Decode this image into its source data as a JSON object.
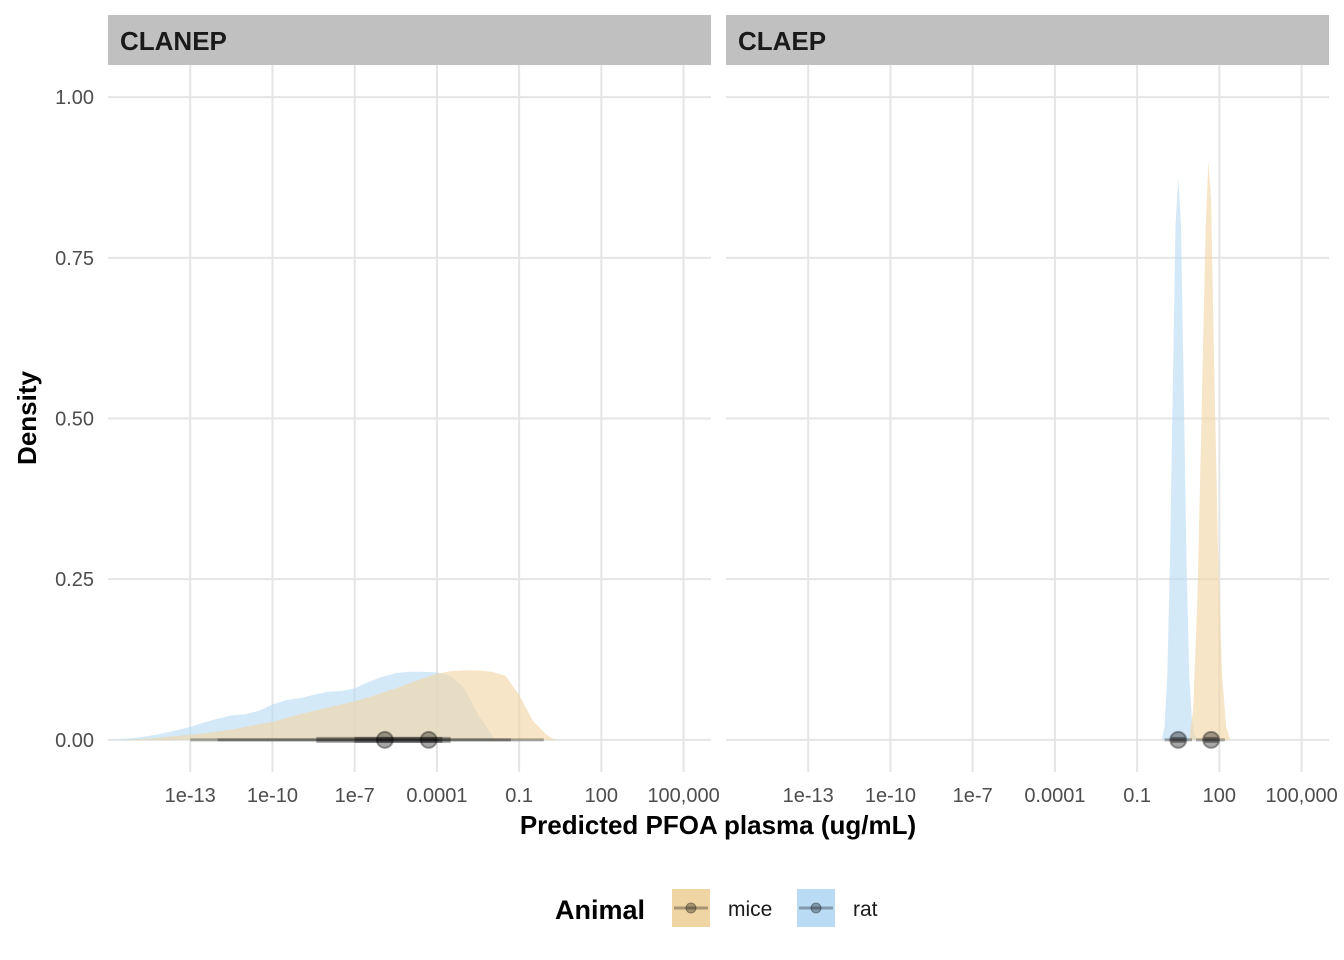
{
  "chart_data": {
    "type": "area",
    "subtype": "density with point-interval summaries, faceted",
    "xlabel": "Predicted PFOA plasma (ug/mL)",
    "ylabel": "Density",
    "x_scale": "log10",
    "x_ticks": [
      {
        "value": 1e-13,
        "label": "1e-13"
      },
      {
        "value": 1e-10,
        "label": "1e-10"
      },
      {
        "value": 1e-07,
        "label": "1e-7"
      },
      {
        "value": 0.0001,
        "label": "0.0001"
      },
      {
        "value": 0.1,
        "label": "0.1"
      },
      {
        "value": 100,
        "label": "100"
      },
      {
        "value": 100000,
        "label": "100,000"
      }
    ],
    "y_ticks": [
      {
        "value": 0,
        "label": "0.00"
      },
      {
        "value": 0.25,
        "label": "0.25"
      },
      {
        "value": 0.5,
        "label": "0.50"
      },
      {
        "value": 0.75,
        "label": "0.75"
      },
      {
        "value": 1,
        "label": "1.00"
      }
    ],
    "xlim_log10": [
      -16,
      6
    ],
    "ylim": [
      -0.05,
      1.05
    ],
    "grid": true,
    "legend": {
      "title": "Animal",
      "position": "bottom",
      "entries": [
        {
          "label": "mice",
          "color": "#f0d5a4"
        },
        {
          "label": "rat",
          "color": "#b9dcf4"
        }
      ]
    },
    "colors": {
      "mice": "#f0d5a4",
      "rat": "#b9dcf4",
      "interval": "#000000",
      "strip": "#c0c0c0"
    },
    "panels": [
      {
        "title": "CLANEP",
        "series": [
          {
            "name": "rat",
            "x_log10": [
              -15.9,
              -15,
              -14.5,
              -14,
              -13.5,
              -13,
              -12.5,
              -12,
              -11.5,
              -11,
              -10.5,
              -10,
              -9.5,
              -9,
              -8.5,
              -8,
              -7.5,
              -7,
              -6.5,
              -6,
              -5.5,
              -5,
              -4.5,
              -4,
              -3.5,
              -3,
              -2.5,
              -2,
              -1.9
            ],
            "density": [
              0.0,
              0.003,
              0.006,
              0.01,
              0.015,
              0.02,
              0.027,
              0.033,
              0.038,
              0.04,
              0.045,
              0.055,
              0.062,
              0.065,
              0.07,
              0.075,
              0.076,
              0.08,
              0.09,
              0.098,
              0.104,
              0.106,
              0.106,
              0.105,
              0.1,
              0.08,
              0.04,
              0.008,
              0.0
            ]
          },
          {
            "name": "mice",
            "x_log10": [
              -15.5,
              -14.5,
              -14,
              -13.5,
              -13,
              -12.5,
              -12,
              -11.5,
              -11,
              -10.5,
              -10,
              -9.5,
              -9,
              -8.5,
              -8,
              -7.5,
              -7,
              -6.5,
              -6,
              -5.5,
              -5,
              -4.5,
              -4,
              -3.5,
              -3,
              -2.5,
              -2,
              -1.5,
              -1,
              -0.5,
              0,
              0.3
            ],
            "density": [
              0.0,
              0.002,
              0.004,
              0.006,
              0.008,
              0.01,
              0.013,
              0.016,
              0.02,
              0.024,
              0.028,
              0.034,
              0.04,
              0.045,
              0.05,
              0.055,
              0.06,
              0.066,
              0.073,
              0.08,
              0.088,
              0.096,
              0.103,
              0.107,
              0.108,
              0.108,
              0.106,
              0.1,
              0.07,
              0.03,
              0.008,
              0.0
            ]
          }
        ],
        "intervals": [
          {
            "name": "rat",
            "point_log10": -5.9,
            "inner": [
              -8.4,
              -3.8
            ],
            "outer": [
              -13,
              -1.3
            ]
          },
          {
            "name": "mice",
            "point_log10": -4.3,
            "inner": [
              -7,
              -3.5
            ],
            "outer": [
              -12,
              -0.1
            ]
          }
        ]
      },
      {
        "title": "CLAEP",
        "series": [
          {
            "name": "rat",
            "x_log10": [
              -0.1,
              0,
              0.1,
              0.2,
              0.3,
              0.4,
              0.5,
              0.6,
              0.7,
              0.8,
              0.9,
              1.0,
              1.1,
              1.2
            ],
            "density": [
              0.0,
              0.02,
              0.1,
              0.28,
              0.55,
              0.8,
              0.875,
              0.8,
              0.55,
              0.28,
              0.1,
              0.03,
              0.008,
              0.0
            ]
          },
          {
            "name": "mice",
            "x_log10": [
              0.9,
              1.05,
              1.2,
              1.35,
              1.5,
              1.6,
              1.7,
              1.8,
              1.95,
              2.1,
              2.25,
              2.4
            ],
            "density": [
              0.0,
              0.05,
              0.22,
              0.5,
              0.8,
              0.9,
              0.84,
              0.6,
              0.3,
              0.1,
              0.02,
              0.0
            ]
          }
        ],
        "intervals": [
          {
            "name": "rat",
            "point_log10": 0.5,
            "inner": [
              0.25,
              0.75
            ],
            "outer": [
              0.0,
              1.0
            ]
          },
          {
            "name": "mice",
            "point_log10": 1.7,
            "inner": [
              1.45,
              1.95
            ],
            "outer": [
              1.15,
              2.2
            ]
          }
        ]
      }
    ]
  }
}
